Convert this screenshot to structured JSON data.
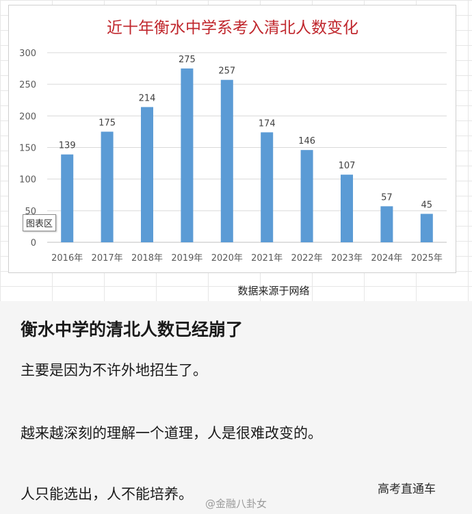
{
  "chart_data": {
    "type": "bar",
    "title": "近十年衡水中学系考入清北人数变化",
    "categories": [
      "2016年",
      "2017年",
      "2018年",
      "2019年",
      "2020年",
      "2021年",
      "2022年",
      "2023年",
      "2024年",
      "2025年"
    ],
    "values": [
      139,
      175,
      214,
      275,
      257,
      174,
      146,
      107,
      57,
      45
    ],
    "ylim": [
      0,
      300
    ],
    "yticks": [
      "0",
      "50",
      "100",
      "150",
      "200",
      "250",
      "300"
    ],
    "grid": true,
    "bar_color": "#5b9bd5",
    "title_color": "#c0272d"
  },
  "chart_area_tag": "图表区",
  "source_note": "数据来源于网络",
  "post": {
    "headline": "衡水中学的清北人数已经崩了",
    "p1": "主要是因为不许外地招生了。",
    "p2": "越来越深刻的理解一个道理，人是很难改变的。",
    "p3": "人只能选出，人不能培养。"
  },
  "watermark": {
    "right": "高考直通车",
    "weibo": "@金融八卦女"
  }
}
